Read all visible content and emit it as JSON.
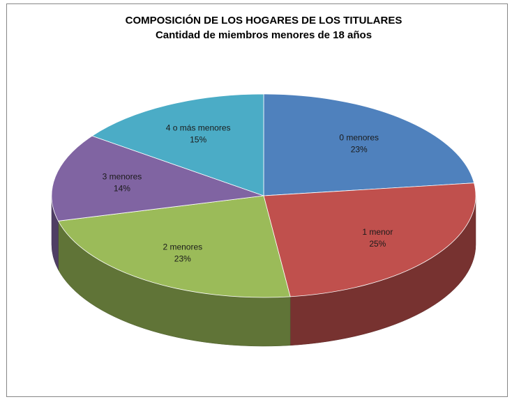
{
  "chart_data": {
    "type": "pie3d",
    "title": "COMPOSICIÓN DE LOS HOGARES DE LOS TITULARES",
    "subtitle": "Cantidad de miembros menores de 18 años",
    "categories": [
      "0 menores",
      "1 menor",
      "2 menores",
      "3 menores",
      "4 o más menores"
    ],
    "values": [
      23,
      25,
      23,
      14,
      15
    ],
    "value_labels": [
      "23%",
      "25%",
      "23%",
      "14%",
      "15%"
    ],
    "colors": [
      "#4f81bd",
      "#c0504d",
      "#9bbb59",
      "#8064a2",
      "#4bacc6"
    ]
  }
}
